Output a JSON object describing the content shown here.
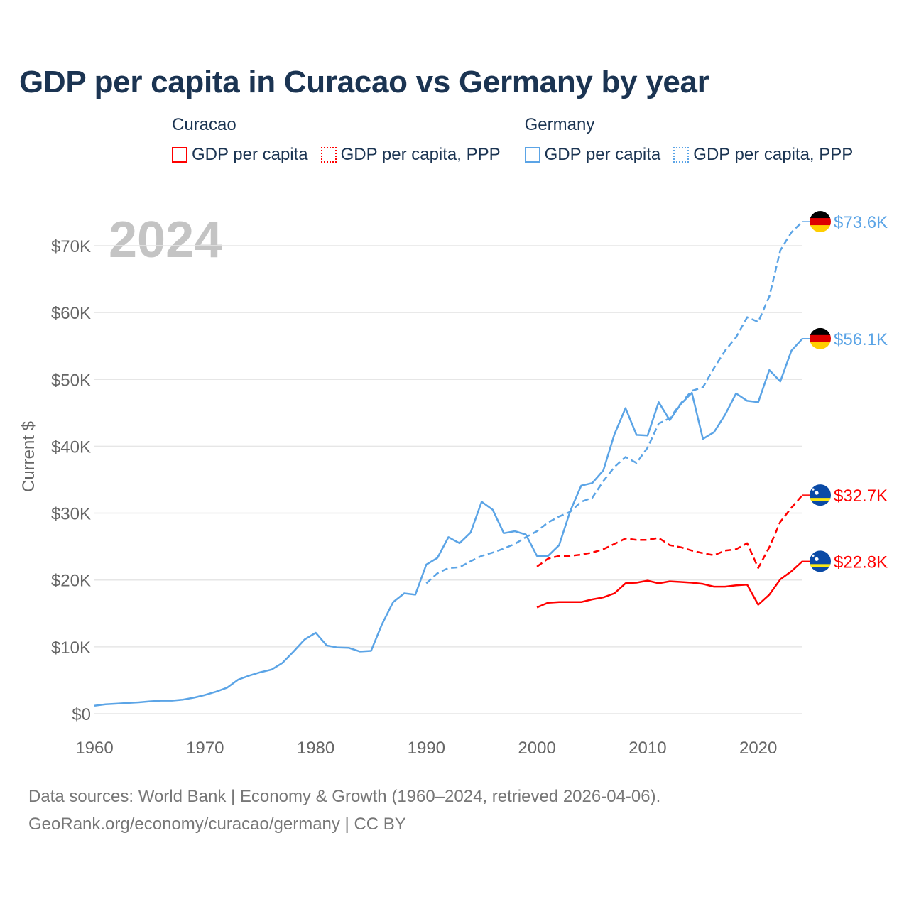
{
  "chart_data": {
    "type": "line",
    "title": "GDP per capita in Curacao vs Germany by year",
    "ylabel": "Current $",
    "xlabel": "",
    "year_watermark": "2024",
    "xlim": [
      1960,
      2024
    ],
    "ylim": [
      0,
      75000
    ],
    "x_ticks": [
      "1960",
      "1970",
      "1980",
      "1990",
      "2000",
      "2010",
      "2020"
    ],
    "x_tick_values": [
      1960,
      1970,
      1980,
      1990,
      2000,
      2010,
      2020
    ],
    "y_ticks": [
      "$0",
      "$10K",
      "$20K",
      "$30K",
      "$40K",
      "$50K",
      "$60K",
      "$70K"
    ],
    "y_tick_values": [
      0,
      10000,
      20000,
      30000,
      40000,
      50000,
      60000,
      70000
    ],
    "grid": true,
    "legend": {
      "placement": "top",
      "groups": [
        {
          "country": "Curacao",
          "items": [
            "GDP per capita",
            "GDP per capita, PPP"
          ]
        },
        {
          "country": "Germany",
          "items": [
            "GDP per capita",
            "GDP per capita, PPP"
          ]
        }
      ]
    },
    "series": [
      {
        "name": "Germany GDP per capita",
        "country": "Germany",
        "style": "solid",
        "color": "#5ba4e6",
        "start": 1960,
        "end_label": "$56.1K",
        "values": [
          1200,
          1400,
          1500,
          1600,
          1700,
          1850,
          1950,
          1950,
          2100,
          2400,
          2800,
          3300,
          3900,
          5100,
          5700,
          6200,
          6600,
          7600,
          9300,
          11100,
          12100,
          10200,
          9900,
          9850,
          9300,
          9400,
          13400,
          16700,
          18000,
          17800,
          22300,
          23300,
          26400,
          25500,
          27100,
          31700,
          30500,
          27000,
          27300,
          26800,
          23600,
          23600,
          25200,
          30300,
          34100,
          34500,
          36400,
          41800,
          45700,
          41700,
          41600,
          46600,
          43900,
          46300,
          48000,
          41100,
          42100,
          44700,
          47900,
          46800,
          46600,
          51400,
          49700,
          54300,
          56100
        ]
      },
      {
        "name": "Germany GDP per capita, PPP",
        "country": "Germany",
        "style": "dashed",
        "color": "#5ba4e6",
        "start": 1990,
        "end_label": "$73.6K",
        "values": [
          19500,
          21000,
          21800,
          21900,
          22800,
          23600,
          24100,
          24700,
          25400,
          26400,
          27300,
          28600,
          29500,
          30200,
          31700,
          32300,
          34800,
          36900,
          38400,
          37500,
          39800,
          43400,
          44200,
          46400,
          48300,
          48800,
          51700,
          54300,
          56300,
          59300,
          58600,
          62400,
          69300,
          72000,
          73600
        ]
      },
      {
        "name": "Curacao GDP per capita",
        "country": "Curacao",
        "style": "solid",
        "color": "#ff0000",
        "start": 2000,
        "end_label": "$22.8K",
        "values": [
          15900,
          16600,
          16700,
          16700,
          16700,
          17100,
          17400,
          18000,
          19500,
          19600,
          19900,
          19500,
          19800,
          19700,
          19600,
          19400,
          19000,
          19000,
          19200,
          19300,
          16300,
          17800,
          20100,
          21300,
          22800
        ]
      },
      {
        "name": "Curacao GDP per capita, PPP",
        "country": "Curacao",
        "style": "dashed",
        "color": "#ff0000",
        "start": 2000,
        "end_label": "$32.7K",
        "values": [
          22000,
          23200,
          23600,
          23600,
          23800,
          24100,
          24600,
          25400,
          26200,
          26000,
          26000,
          26300,
          25200,
          24900,
          24400,
          24000,
          23700,
          24400,
          24600,
          25500,
          21800,
          24900,
          28700,
          30800,
          32700
        ]
      }
    ]
  },
  "footer": {
    "line1": "Data sources: World Bank | Economy & Growth (1960–2024, retrieved 2026-04-06).",
    "line2": "GeoRank.org/economy/curacao/germany | CC BY"
  }
}
